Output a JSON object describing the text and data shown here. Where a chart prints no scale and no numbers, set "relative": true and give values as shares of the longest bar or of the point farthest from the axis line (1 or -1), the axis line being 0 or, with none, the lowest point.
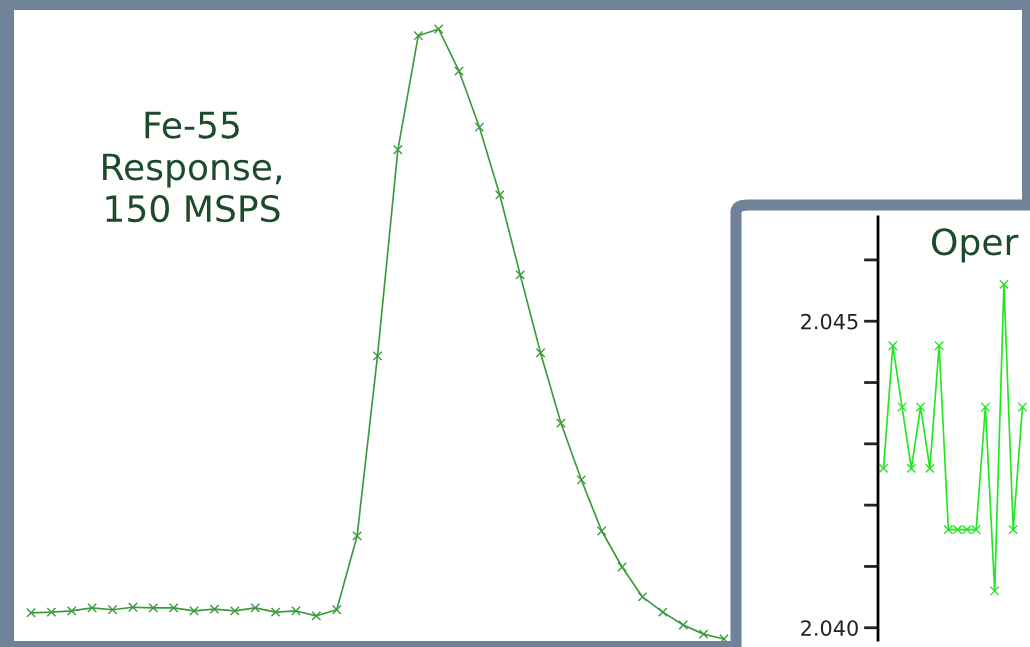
{
  "chart_data": [
    {
      "type": "line",
      "title": "Fe-55\nResponse,\n150 MSPS",
      "relative": true,
      "marker": "cross",
      "line_style": "solid",
      "grid": false,
      "tick_labels": false,
      "categories": [
        null,
        null,
        null,
        null,
        null,
        null,
        null,
        null,
        null,
        null,
        null,
        null,
        null,
        null,
        null,
        null,
        null,
        null,
        null,
        null,
        null,
        null,
        null,
        null,
        null,
        null,
        null,
        null,
        null,
        null,
        null,
        null,
        null,
        null,
        null
      ],
      "series": [
        {
          "color": "#3c9a3c",
          "values": [
            0.043,
            0.044,
            0.046,
            0.051,
            0.048,
            0.052,
            0.051,
            0.051,
            0.046,
            0.049,
            0.046,
            0.051,
            0.044,
            0.046,
            0.038,
            0.048,
            0.169,
            0.464,
            0.802,
            0.989,
            1,
            0.931,
            0.839,
            0.728,
            0.597,
            0.469,
            0.354,
            0.261,
            0.177,
            0.118,
            0.069,
            0.044,
            0.023,
            0.008,
            0
          ]
        }
      ]
    },
    {
      "type": "line",
      "title": "Oper",
      "marker": "cross",
      "line_style": "solid",
      "grid": false,
      "tick_labels": "y",
      "ylim": [
        2.0398,
        2.0467
      ],
      "yticks": [
        {
          "value": 2.04,
          "label": "2.040"
        },
        {
          "value": 2.041,
          "label": null
        },
        {
          "value": 2.042,
          "label": null
        },
        {
          "value": 2.043,
          "label": null
        },
        {
          "value": 2.044,
          "label": null
        },
        {
          "value": 2.045,
          "label": "2.045"
        },
        {
          "value": 2.046,
          "label": null
        }
      ],
      "categories": [
        null,
        null,
        null,
        null,
        null,
        null,
        null,
        null,
        null,
        null,
        null,
        null,
        null,
        null,
        null,
        null
      ],
      "series": [
        {
          "color": "#22e622",
          "values": [
            2.0426,
            2.0446,
            2.0436,
            2.0426,
            2.0436,
            2.0426,
            2.0446,
            2.0416,
            2.0416,
            2.0416,
            2.0416,
            2.0436,
            2.0406,
            2.0456,
            2.0416,
            2.0436
          ]
        }
      ]
    }
  ]
}
